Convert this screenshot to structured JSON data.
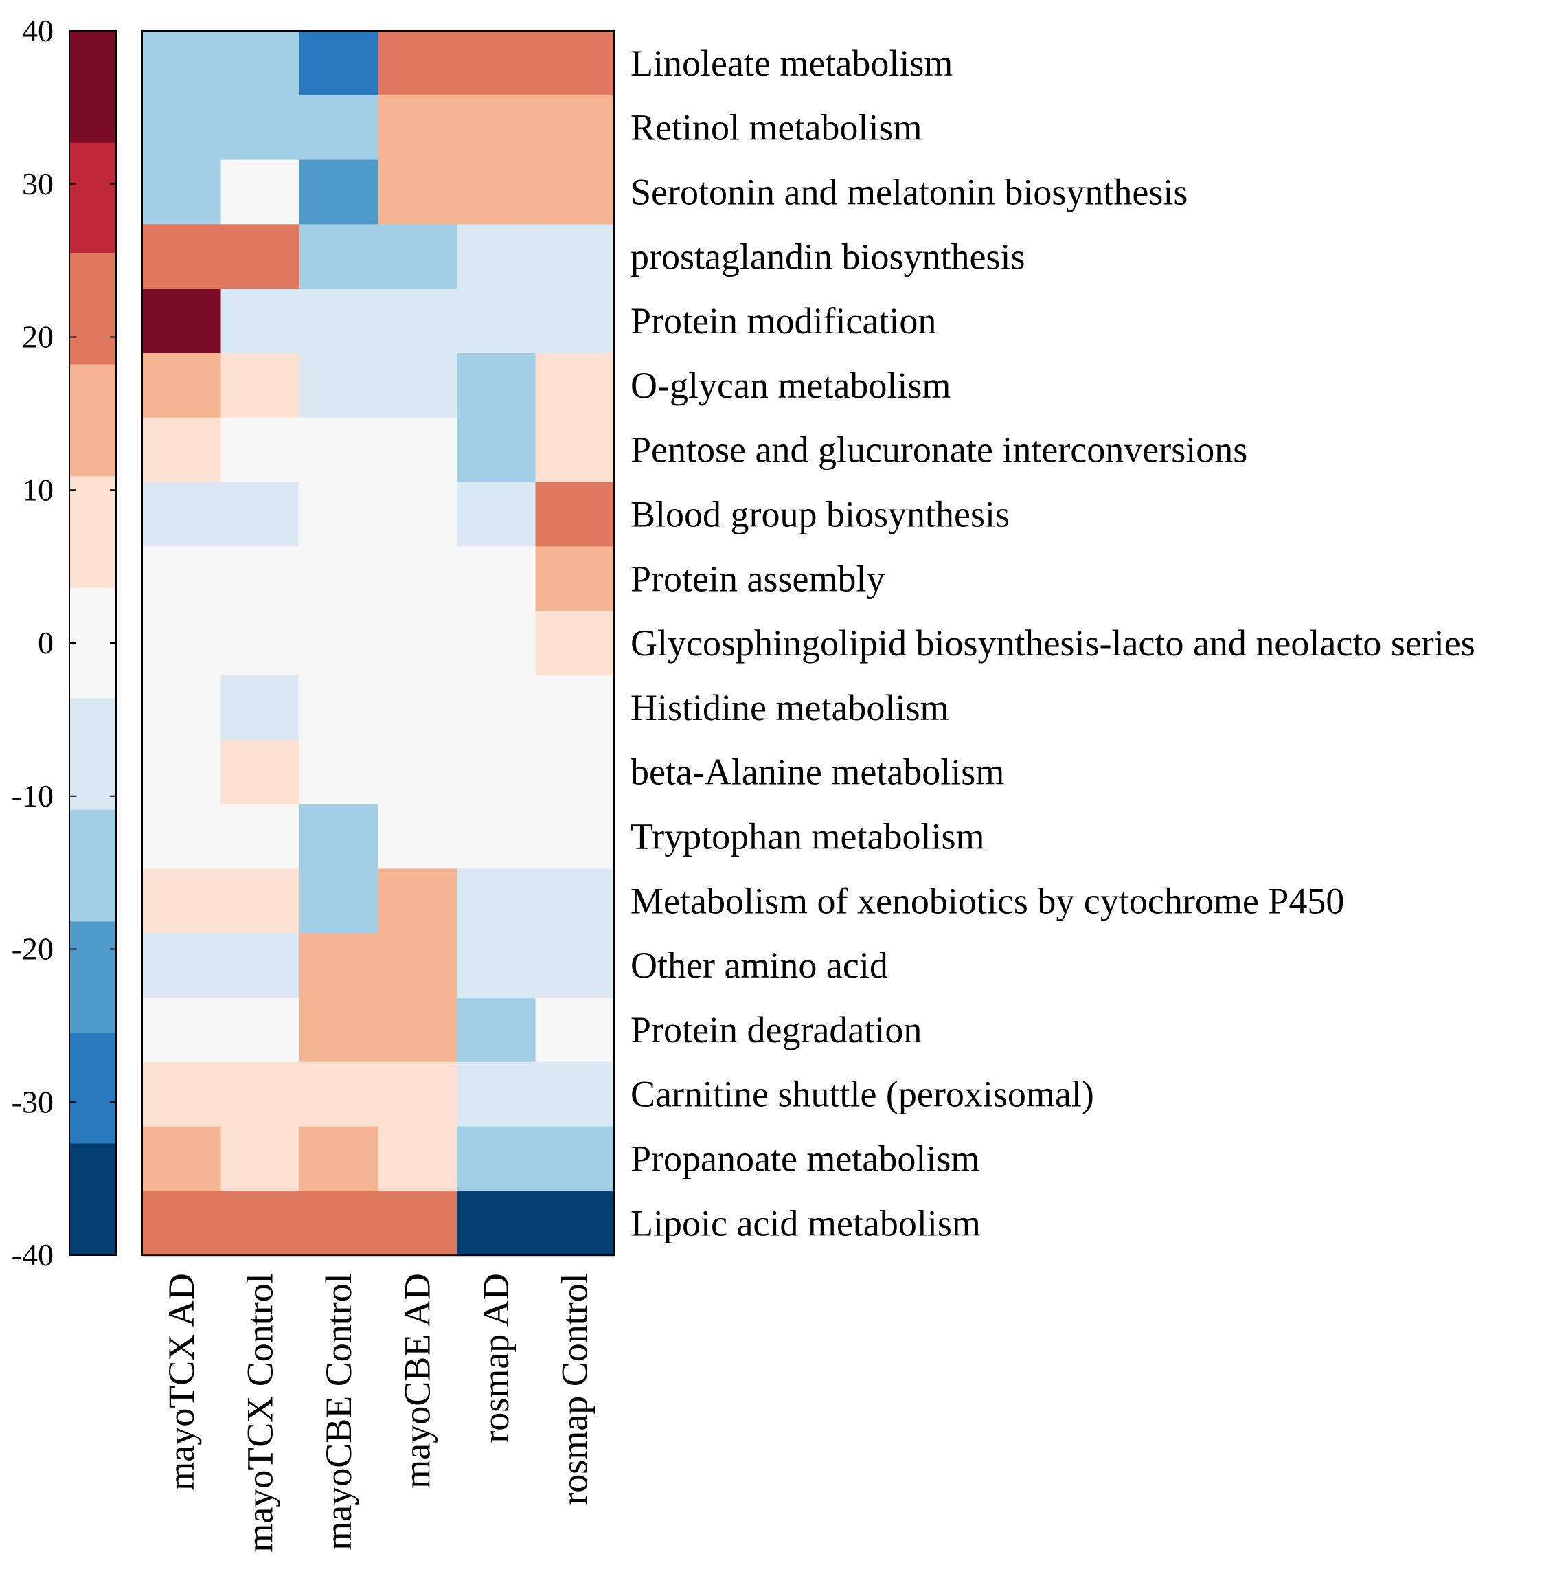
{
  "chart_data": {
    "type": "heatmap",
    "columns": [
      "mayoTCX AD",
      "mayoTCX Control",
      "mayoCBE Control",
      "mayoCBE AD",
      "rosmap AD",
      "rosmap Control"
    ],
    "rows": [
      "Linoleate metabolism",
      "Retinol metabolism",
      "Serotonin and melatonin biosynthesis",
      "prostaglandin biosynthesis",
      "Protein modification",
      "O-glycan metabolism",
      "Pentose and glucuronate interconversions",
      "Blood group biosynthesis",
      "Protein assembly",
      "Glycosphingolipid biosynthesis-lacto and neolacto series",
      "Histidine metabolism",
      "beta-Alanine metabolism",
      "Tryptophan metabolism",
      "Metabolism of xenobiotics by cytochrome P450",
      "Other amino acid",
      "Protein degradation",
      "Carnitine shuttle (peroxisomal)",
      "Propanoate metabolism",
      "Lipoic acid metabolism"
    ],
    "values": [
      [
        -15,
        -15,
        -30,
        25,
        25,
        25
      ],
      [
        -15,
        -15,
        -15,
        15,
        15,
        15
      ],
      [
        -15,
        0,
        -20,
        15,
        15,
        15
      ],
      [
        25,
        25,
        -15,
        -15,
        -5,
        -5
      ],
      [
        40,
        -5,
        -5,
        -5,
        -5,
        -5
      ],
      [
        15,
        5,
        -5,
        -5,
        -15,
        5
      ],
      [
        5,
        0,
        0,
        0,
        -15,
        5
      ],
      [
        -5,
        -5,
        0,
        0,
        -5,
        25
      ],
      [
        0,
        0,
        0,
        0,
        0,
        15
      ],
      [
        0,
        0,
        0,
        0,
        0,
        5
      ],
      [
        0,
        -5,
        0,
        0,
        0,
        0
      ],
      [
        0,
        5,
        0,
        0,
        0,
        0
      ],
      [
        0,
        0,
        -15,
        0,
        0,
        0
      ],
      [
        5,
        5,
        -15,
        15,
        -5,
        -5
      ],
      [
        -5,
        -5,
        15,
        15,
        -5,
        -5
      ],
      [
        0,
        0,
        15,
        15,
        -15,
        0
      ],
      [
        5,
        5,
        5,
        5,
        -5,
        -5
      ],
      [
        15,
        5,
        15,
        5,
        -15,
        -15
      ],
      [
        25,
        25,
        25,
        25,
        -40,
        -40
      ]
    ],
    "colorbar": {
      "range": [
        -40,
        40
      ],
      "ticks": [
        40,
        30,
        20,
        10,
        0,
        -10,
        -20,
        -30,
        -40
      ],
      "tick_labels": [
        "40",
        "30",
        "20",
        "10",
        "0",
        "-10",
        "-20",
        "-30",
        "-40"
      ],
      "bins": [
        {
          "min": 32.7,
          "max": 40,
          "color": "#7a0d25"
        },
        {
          "min": 25.5,
          "max": 32.7,
          "color": "#c0273a"
        },
        {
          "min": 18.2,
          "max": 25.5,
          "color": "#e07860"
        },
        {
          "min": 10.9,
          "max": 18.2,
          "color": "#f5b491"
        },
        {
          "min": 3.6,
          "max": 10.9,
          "color": "#fce0d2"
        },
        {
          "min": -3.6,
          "max": 3.6,
          "color": "#f7f7f7"
        },
        {
          "min": -10.9,
          "max": -3.6,
          "color": "#d9e8f2"
        },
        {
          "min": -18.2,
          "max": -10.9,
          "color": "#a2cfe5"
        },
        {
          "min": -25.5,
          "max": -18.2,
          "color": "#4f9cca"
        },
        {
          "min": -32.7,
          "max": -25.5,
          "color": "#2879bd"
        },
        {
          "min": -40,
          "max": -32.7,
          "color": "#043f72"
        }
      ]
    }
  }
}
